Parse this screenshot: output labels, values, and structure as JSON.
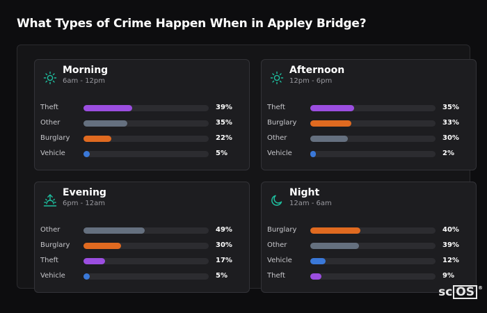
{
  "page": {
    "title": "What Types of Crime Happen When in Appley Bridge?"
  },
  "colors": {
    "theft": "#9b4ee0",
    "other": "#65707f",
    "burglary": "#e06a20",
    "vehicle": "#3a78d8",
    "icon": "#1ec0a0"
  },
  "cards": [
    {
      "title": "Morning",
      "subtitle": "6am - 12pm",
      "icon": "sun-icon",
      "rows": [
        {
          "label": "Theft",
          "value": "39%",
          "pct": 39,
          "key": "theft"
        },
        {
          "label": "Other",
          "value": "35%",
          "pct": 35,
          "key": "other"
        },
        {
          "label": "Burglary",
          "value": "22%",
          "pct": 22,
          "key": "burglary"
        },
        {
          "label": "Vehicle",
          "value": "5%",
          "pct": 5,
          "key": "vehicle"
        }
      ]
    },
    {
      "title": "Afternoon",
      "subtitle": "12pm - 6pm",
      "icon": "sun-icon",
      "rows": [
        {
          "label": "Theft",
          "value": "35%",
          "pct": 35,
          "key": "theft"
        },
        {
          "label": "Burglary",
          "value": "33%",
          "pct": 33,
          "key": "burglary"
        },
        {
          "label": "Other",
          "value": "30%",
          "pct": 30,
          "key": "other"
        },
        {
          "label": "Vehicle",
          "value": "2%",
          "pct": 2,
          "key": "vehicle"
        }
      ]
    },
    {
      "title": "Evening",
      "subtitle": "6pm - 12am",
      "icon": "sunset-icon",
      "rows": [
        {
          "label": "Other",
          "value": "49%",
          "pct": 49,
          "key": "other"
        },
        {
          "label": "Burglary",
          "value": "30%",
          "pct": 30,
          "key": "burglary"
        },
        {
          "label": "Theft",
          "value": "17%",
          "pct": 17,
          "key": "theft"
        },
        {
          "label": "Vehicle",
          "value": "5%",
          "pct": 5,
          "key": "vehicle"
        }
      ]
    },
    {
      "title": "Night",
      "subtitle": "12am - 6am",
      "icon": "moon-icon",
      "rows": [
        {
          "label": "Burglary",
          "value": "40%",
          "pct": 40,
          "key": "burglary"
        },
        {
          "label": "Other",
          "value": "39%",
          "pct": 39,
          "key": "other"
        },
        {
          "label": "Vehicle",
          "value": "12%",
          "pct": 12,
          "key": "vehicle"
        },
        {
          "label": "Theft",
          "value": "9%",
          "pct": 9,
          "key": "theft"
        }
      ]
    }
  ],
  "logo": {
    "prefix": "sc",
    "boxed": "OS",
    "mark": "®"
  }
}
